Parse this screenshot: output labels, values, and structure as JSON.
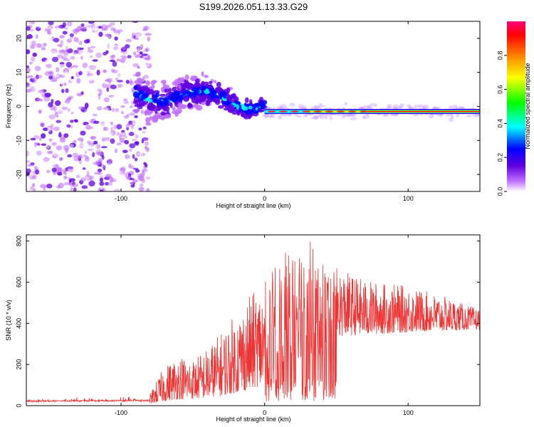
{
  "title": "S199.2026.051.13.33.G29",
  "chart_data": [
    {
      "type": "heatmap",
      "name": "spectrogram",
      "xlabel": "Height of straight line (km)",
      "ylabel": "Frequency (Hz)",
      "xlim": [
        -166,
        150
      ],
      "ylim": [
        -25,
        25
      ],
      "xticks": [
        -100,
        0,
        100
      ],
      "yticks": [
        -20,
        -10,
        0,
        10,
        20
      ],
      "colorbar": {
        "label": "Normalized spectral amplitude",
        "range": [
          0,
          1
        ],
        "ticks": [
          "0.0",
          "0.2",
          "0.4",
          "0.6",
          "0.8"
        ],
        "tick_values": [
          0.0,
          0.2,
          0.4,
          0.6,
          0.8
        ],
        "colors": [
          "#ffffff",
          "#c070ff",
          "#6000e0",
          "#0000ff",
          "#00ffff",
          "#00ff00",
          "#ffff00",
          "#ff8000",
          "#ff0000",
          "#ff0080"
        ]
      },
      "features": [
        {
          "label": "diffuse noise",
          "x_range": [
            -166,
            -80
          ],
          "freq_spread": 25
        },
        {
          "label": "dispersed band",
          "x_range": [
            -90,
            0
          ],
          "freq_center_start": 4,
          "freq_center_end": 1
        },
        {
          "label": "coherent tone",
          "x_range": [
            0,
            150
          ],
          "freq_center": -1.5,
          "amplitude_max": 0.97
        }
      ]
    },
    {
      "type": "line",
      "name": "snr",
      "xlabel": "Height of straight line (km)",
      "ylabel": "SNR (10 * v/v)",
      "xlim": [
        -166,
        150
      ],
      "ylim": [
        0,
        830
      ],
      "xticks": [
        -100,
        0,
        100
      ],
      "yticks": [
        0,
        200,
        400,
        600,
        800
      ],
      "color": "#ee3333",
      "envelope": {
        "x": [
          -166,
          -80,
          -70,
          -60,
          -50,
          -40,
          -30,
          -20,
          -10,
          0,
          10,
          20,
          30,
          40,
          50,
          60,
          70,
          80,
          90,
          100,
          110,
          120,
          130,
          140,
          150
        ],
        "base": [
          22,
          25,
          60,
          90,
          95,
          110,
          140,
          180,
          230,
          290,
          330,
          370,
          400,
          405,
          420,
          425,
          430,
          435,
          440,
          445,
          450,
          450,
          455,
          460,
          460
        ],
        "peak": [
          40,
          60,
          190,
          250,
          230,
          280,
          360,
          450,
          540,
          600,
          700,
          820,
          820,
          720,
          670,
          640,
          610,
          600,
          590,
          580,
          560,
          540,
          520,
          490,
          470
        ]
      }
    }
  ]
}
